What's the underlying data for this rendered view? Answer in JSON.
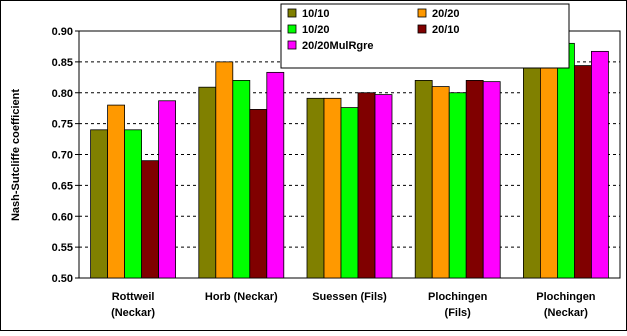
{
  "chart_data": {
    "type": "bar",
    "ylabel": "Nash-Sutcliffe coefficient",
    "ylim": [
      0.5,
      0.9
    ],
    "yticks": [
      "0.50",
      "0.55",
      "0.60",
      "0.65",
      "0.70",
      "0.75",
      "0.80",
      "0.85",
      "0.90"
    ],
    "grid": "horizontal dashed",
    "legend_position": "top-right",
    "categories": [
      [
        "Rottweil",
        "(Neckar)"
      ],
      [
        "Horb (Neckar)"
      ],
      [
        "Suessen (Fils)"
      ],
      [
        "Plochingen",
        "(Fils)"
      ],
      [
        "Plochingen",
        "(Neckar)"
      ]
    ],
    "series": [
      {
        "name": "10/10",
        "color": "#808000",
        "values": [
          0.74,
          0.809,
          0.791,
          0.82,
          0.866
        ]
      },
      {
        "name": "20/20",
        "color": "#FF9900",
        "values": [
          0.78,
          0.85,
          0.791,
          0.81,
          0.87
        ]
      },
      {
        "name": "10/20",
        "color": "#00FF00",
        "values": [
          0.74,
          0.82,
          0.776,
          0.8,
          0.88
        ]
      },
      {
        "name": "20/10",
        "color": "#800000",
        "values": [
          0.69,
          0.773,
          0.8,
          0.82,
          0.844
        ]
      },
      {
        "name": "20/20MulRgre",
        "color": "#FF00FF",
        "values": [
          0.787,
          0.833,
          0.797,
          0.818,
          0.867
        ]
      }
    ]
  }
}
